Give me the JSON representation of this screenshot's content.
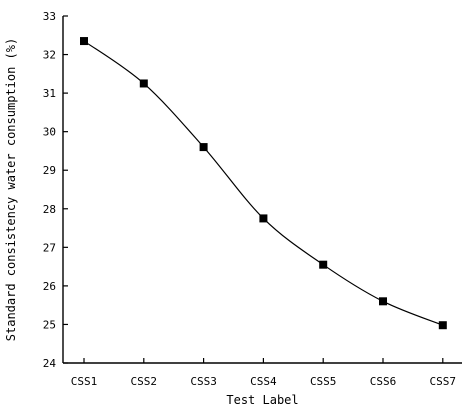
{
  "chart_data": {
    "type": "line",
    "title": "",
    "xlabel": "Test Label",
    "ylabel": "Standard consistency water consumption (%)",
    "categories": [
      "CSS1",
      "CSS2",
      "CSS3",
      "CSS4",
      "CSS5",
      "CSS6",
      "CSS7"
    ],
    "series": [
      {
        "values": [
          32.35,
          31.25,
          29.6,
          27.75,
          26.55,
          25.6,
          24.98
        ]
      }
    ],
    "ylim": [
      24,
      33
    ],
    "yticks": [
      "24",
      "25",
      "26",
      "27",
      "28",
      "29",
      "30",
      "31",
      "32",
      "33"
    ],
    "grid": false,
    "legend": "none",
    "marker": "square",
    "colors": {
      "line": "#000000",
      "marker": "#000000",
      "axis": "#000000"
    }
  }
}
